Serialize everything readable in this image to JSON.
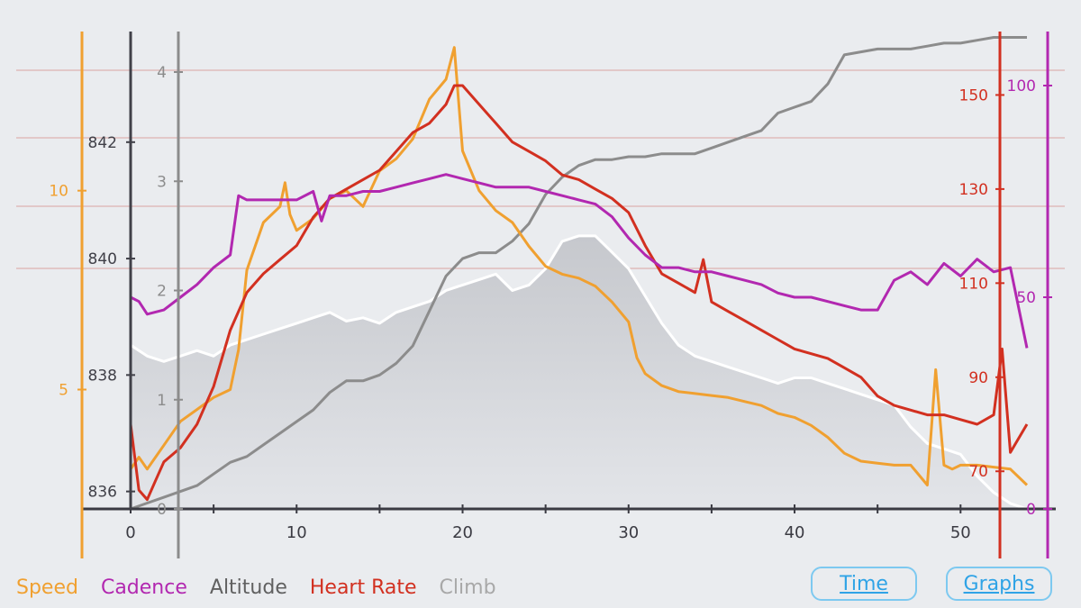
{
  "legend": [
    {
      "label": "Speed",
      "color": "#f0a030"
    },
    {
      "label": "Cadence",
      "color": "#b228b0"
    },
    {
      "label": "Altitude",
      "color": "#606060"
    },
    {
      "label": "Heart Rate",
      "color": "#d23020"
    },
    {
      "label": "Climb",
      "color": "#a8a8a8"
    }
  ],
  "buttons": {
    "time": "Time",
    "graphs": "Graphs"
  },
  "chart_data": {
    "type": "line",
    "x_ticks": [
      "0",
      "10",
      "20",
      "30",
      "40",
      "50"
    ],
    "xlim": [
      0,
      54
    ],
    "axes": {
      "speed": {
        "ticks": [
          "5",
          "10"
        ],
        "values": [
          5,
          10
        ],
        "ylim": [
          2,
          14
        ],
        "color": "#f0a030"
      },
      "altitude": {
        "ticks": [
          "836",
          "838",
          "840",
          "842"
        ],
        "values": [
          836,
          838,
          840,
          842
        ],
        "ylim": [
          835.7,
          843.9
        ],
        "color": "#404048"
      },
      "climb": {
        "ticks": [
          "0",
          "1",
          "2",
          "3",
          "4"
        ],
        "values": [
          0,
          1,
          2,
          3,
          4
        ],
        "ylim": [
          0,
          4
        ],
        "color": "#888888"
      },
      "heart_rate": {
        "ticks": [
          "70",
          "90",
          "110",
          "130",
          "150"
        ],
        "values": [
          70,
          90,
          110,
          130,
          150
        ],
        "ylim": [
          62,
          152
        ],
        "color": "#d23020"
      },
      "cadence": {
        "ticks": [
          "0",
          "50",
          "100"
        ],
        "values": [
          0,
          50,
          100
        ],
        "ylim": [
          0,
          100
        ],
        "color": "#b228b0"
      }
    },
    "series": [
      {
        "name": "Climb",
        "axis": "climb",
        "color": "#ffffff",
        "x": [
          0,
          1,
          2,
          3,
          4,
          5,
          6,
          7,
          8,
          9,
          10,
          11,
          12,
          13,
          14,
          15,
          16,
          17,
          18,
          19,
          20,
          21,
          22,
          23,
          24,
          25,
          26,
          27,
          28,
          29,
          30,
          31,
          32,
          33,
          34,
          35,
          36,
          37,
          38,
          39,
          40,
          41,
          42,
          43,
          44,
          45,
          46,
          47,
          48,
          49,
          50,
          51,
          52,
          53,
          54
        ],
        "y": [
          1.5,
          1.4,
          1.35,
          1.4,
          1.45,
          1.4,
          1.5,
          1.55,
          1.6,
          1.65,
          1.7,
          1.75,
          1.8,
          1.72,
          1.75,
          1.7,
          1.8,
          1.85,
          1.9,
          2.0,
          2.05,
          2.1,
          2.15,
          2.0,
          2.05,
          2.2,
          2.45,
          2.5,
          2.5,
          2.35,
          2.2,
          1.95,
          1.7,
          1.5,
          1.4,
          1.35,
          1.3,
          1.25,
          1.2,
          1.15,
          1.2,
          1.2,
          1.15,
          1.1,
          1.05,
          1.0,
          0.95,
          0.75,
          0.6,
          0.55,
          0.5,
          0.3,
          0.15,
          0.05,
          0.0
        ]
      },
      {
        "name": "Altitude",
        "axis": "altitude",
        "color": "#8c8c8c",
        "x": [
          0,
          1,
          2,
          3,
          4,
          5,
          6,
          7,
          8,
          9,
          10,
          11,
          12,
          13,
          14,
          15,
          16,
          17,
          18,
          19,
          20,
          21,
          22,
          23,
          24,
          25,
          26,
          27,
          28,
          29,
          30,
          31,
          32,
          33,
          34,
          35,
          36,
          37,
          38,
          39,
          40,
          41,
          42,
          43,
          44,
          45,
          46,
          47,
          48,
          49,
          50,
          51,
          52,
          53,
          54
        ],
        "y": [
          835.7,
          835.8,
          835.9,
          836.0,
          836.1,
          836.3,
          836.5,
          836.6,
          836.8,
          837.0,
          837.2,
          837.4,
          837.7,
          837.9,
          837.9,
          838.0,
          838.2,
          838.5,
          839.1,
          839.7,
          840.0,
          840.1,
          840.1,
          840.3,
          840.6,
          841.1,
          841.4,
          841.6,
          841.7,
          841.7,
          841.75,
          841.75,
          841.8,
          841.8,
          841.8,
          841.9,
          842.0,
          842.1,
          842.2,
          842.5,
          842.6,
          842.7,
          843.0,
          843.5,
          843.55,
          843.6,
          843.6,
          843.6,
          843.65,
          843.7,
          843.7,
          843.75,
          843.8,
          843.8,
          843.8
        ]
      },
      {
        "name": "Speed",
        "axis": "speed",
        "color": "#f0a030",
        "x": [
          0,
          0.5,
          1,
          1.5,
          2,
          3,
          4,
          5,
          6,
          6.5,
          7,
          8,
          9,
          9.3,
          9.6,
          10,
          11,
          12,
          13,
          14,
          15,
          16,
          17,
          18,
          19,
          19.5,
          20,
          21,
          22,
          23,
          24,
          25,
          26,
          27,
          28,
          29,
          30,
          30.5,
          31,
          32,
          33,
          34,
          35,
          36,
          37,
          38,
          39,
          40,
          41,
          42,
          43,
          44,
          45,
          46,
          47,
          48,
          48.5,
          49,
          49.5,
          50,
          51,
          52,
          53,
          54
        ],
        "y": [
          3.0,
          3.3,
          3.0,
          3.3,
          3.6,
          4.2,
          4.5,
          4.8,
          5.0,
          6.0,
          8.0,
          9.2,
          9.6,
          10.2,
          9.4,
          9.0,
          9.3,
          9.8,
          10.0,
          9.6,
          10.5,
          10.8,
          11.3,
          12.3,
          12.8,
          13.6,
          11.0,
          10.0,
          9.5,
          9.2,
          8.6,
          8.1,
          7.9,
          7.8,
          7.6,
          7.2,
          6.7,
          5.8,
          5.4,
          5.1,
          4.95,
          4.9,
          4.85,
          4.8,
          4.7,
          4.6,
          4.4,
          4.3,
          4.1,
          3.8,
          3.4,
          3.2,
          3.15,
          3.1,
          3.1,
          2.6,
          5.5,
          3.1,
          3.0,
          3.1,
          3.1,
          3.05,
          3.0,
          2.6
        ]
      },
      {
        "name": "Heart Rate",
        "axis": "heart_rate",
        "color": "#d23020",
        "x": [
          0,
          0.5,
          1,
          1.5,
          2,
          3,
          4,
          5,
          6,
          7,
          8,
          9,
          10,
          11,
          12,
          13,
          14,
          15,
          16,
          17,
          18,
          19,
          19.5,
          20,
          21,
          22,
          23,
          24,
          25,
          26,
          27,
          28,
          29,
          30,
          31,
          32,
          33,
          34,
          34.5,
          35,
          36,
          37,
          38,
          39,
          40,
          41,
          42,
          43,
          44,
          45,
          46,
          47,
          48,
          49,
          50,
          51,
          52,
          52.5,
          53,
          54
        ],
        "y": [
          80,
          66,
          64,
          68,
          72,
          75,
          80,
          88,
          100,
          108,
          112,
          115,
          118,
          124,
          128,
          130,
          132,
          134,
          138,
          142,
          144,
          148,
          152,
          152,
          148,
          144,
          140,
          138,
          136,
          133,
          132,
          130,
          128,
          125,
          118,
          112,
          110,
          108,
          115,
          106,
          104,
          102,
          100,
          98,
          96,
          95,
          94,
          92,
          90,
          86,
          84,
          83,
          82,
          82,
          81,
          80,
          82,
          96,
          74,
          80
        ]
      },
      {
        "name": "Cadence",
        "axis": "cadence",
        "color": "#b228b0",
        "x": [
          0,
          0.5,
          1,
          2,
          3,
          4,
          5,
          6,
          6.5,
          7,
          8,
          9,
          10,
          11,
          11.5,
          12,
          13,
          14,
          15,
          16,
          17,
          18,
          19,
          20,
          21,
          22,
          23,
          24,
          25,
          26,
          27,
          28,
          29,
          30,
          31,
          32,
          33,
          34,
          35,
          36,
          37,
          38,
          39,
          40,
          41,
          42,
          43,
          44,
          45,
          46,
          47,
          48,
          49,
          50,
          51,
          52,
          53,
          54
        ],
        "y": [
          50,
          49,
          46,
          47,
          50,
          53,
          57,
          60,
          74,
          73,
          73,
          73,
          73,
          75,
          68,
          74,
          74,
          75,
          75,
          76,
          77,
          78,
          79,
          78,
          77,
          76,
          76,
          76,
          75,
          74,
          73,
          72,
          69,
          64,
          60,
          57,
          57,
          56,
          56,
          55,
          54,
          53,
          51,
          50,
          50,
          49,
          48,
          47,
          47,
          54,
          56,
          53,
          58,
          55,
          59,
          56,
          57,
          38
        ]
      }
    ]
  }
}
